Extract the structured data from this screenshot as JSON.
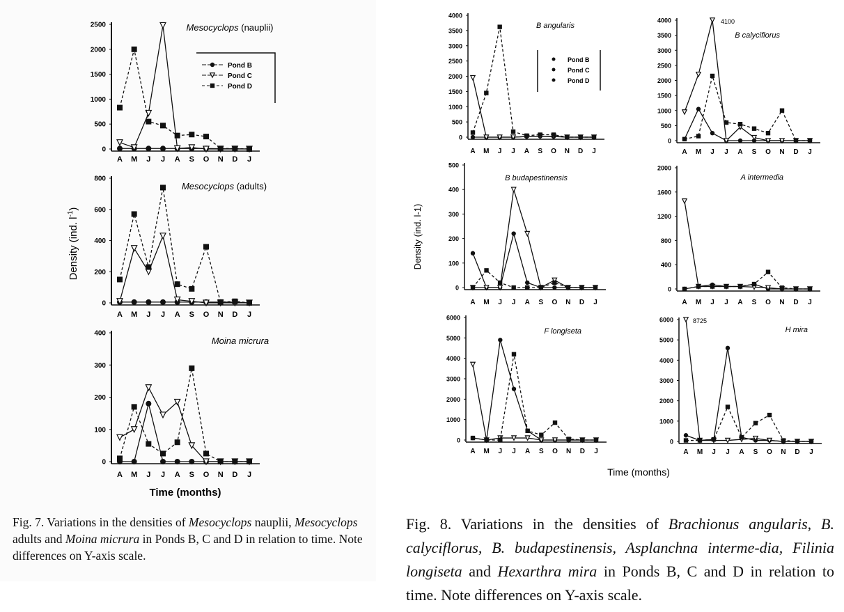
{
  "figure7": {
    "ylabel": "Density (ind. l",
    "ylabel_sup": "-1",
    "ylabel_end": ")",
    "xlabel": "Time (months)",
    "caption": [
      {
        "t": "Fig. 7. Variations in the densities of ",
        "i": false
      },
      {
        "t": "Mesocyclops",
        "i": true
      },
      {
        "t": " nauplii, ",
        "i": false
      },
      {
        "t": "Mesocyclops",
        "i": true
      },
      {
        "t": " adults and ",
        "i": false
      },
      {
        "t": "Moina micrura",
        "i": true
      },
      {
        "t": " in Ponds B, C and D in relation to time. Note differences on Y-axis scale.",
        "i": false
      }
    ]
  },
  "figure8": {
    "ylabel": "Density (ind. l-1)",
    "xlabel": "Time (months)",
    "caption": [
      {
        "t": "Fig. 8. Variations in the densities of ",
        "i": false
      },
      {
        "t": "Brachionus angularis, B. calyciflorus, B. budapestinensis, Asplanchna interme-dia, Filinia longiseta",
        "i": true
      },
      {
        "t": " and ",
        "i": false
      },
      {
        "t": "Hexarthra mira",
        "i": true
      },
      {
        "t": " in Ponds B, C and D in relation to time. Note differences on Y-axis scale.",
        "i": false
      }
    ]
  },
  "legend": [
    "Pond B",
    "Pond C",
    "Pond D"
  ],
  "chart_data": [
    {
      "type": "line",
      "figure": "Fig. 7",
      "title": "Mesocyclops (nauplii)",
      "title_italic": "Mesocyclops",
      "title_rest": " (nauplii)",
      "xlabel": "Time (months)",
      "ylabel": "Density (ind. l-1)",
      "categories": [
        "A",
        "M",
        "J",
        "J",
        "A",
        "S",
        "O",
        "N",
        "D",
        "J"
      ],
      "ylim": [
        0,
        2500
      ],
      "yticks": [
        0,
        500,
        1000,
        1500,
        2000,
        2500
      ],
      "legend": "top-right",
      "series": [
        {
          "name": "Pond B",
          "values": [
            10,
            10,
            10,
            10,
            10,
            10,
            10,
            5,
            5,
            0
          ]
        },
        {
          "name": "Pond C",
          "values": [
            130,
            30,
            720,
            2480,
            10,
            30,
            0,
            0,
            0,
            0
          ]
        },
        {
          "name": "Pond D",
          "values": [
            830,
            2000,
            550,
            470,
            270,
            290,
            250,
            10,
            10,
            0
          ]
        }
      ]
    },
    {
      "type": "line",
      "figure": "Fig. 7",
      "title": "Mesocyclops (adults)",
      "title_italic": "Mesocyclops",
      "title_rest": " (adults)",
      "categories": [
        "A",
        "M",
        "J",
        "J",
        "A",
        "S",
        "O",
        "N",
        "D",
        "J"
      ],
      "ylim": [
        0,
        800
      ],
      "yticks": [
        0,
        200,
        400,
        600,
        800
      ],
      "series": [
        {
          "name": "Pond B",
          "values": [
            5,
            5,
            5,
            5,
            5,
            5,
            5,
            5,
            5,
            0
          ]
        },
        {
          "name": "Pond C",
          "values": [
            10,
            350,
            200,
            430,
            20,
            10,
            0,
            0,
            0,
            0
          ]
        },
        {
          "name": "Pond D",
          "values": [
            150,
            570,
            230,
            740,
            120,
            90,
            360,
            5,
            10,
            0
          ]
        }
      ]
    },
    {
      "type": "line",
      "figure": "Fig. 7",
      "title": "Moina micrura",
      "title_italic": "Moina micrura",
      "title_rest": "",
      "categories": [
        "A",
        "M",
        "J",
        "J",
        "A",
        "S",
        "O",
        "N",
        "D",
        "J"
      ],
      "ylim": [
        0,
        400
      ],
      "yticks": [
        0,
        100,
        200,
        300,
        400
      ],
      "series": [
        {
          "name": "Pond B",
          "values": [
            0,
            0,
            180,
            0,
            0,
            0,
            0,
            0,
            0,
            0
          ]
        },
        {
          "name": "Pond C",
          "values": [
            75,
            100,
            230,
            145,
            185,
            50,
            0,
            0,
            0,
            0
          ]
        },
        {
          "name": "Pond D",
          "values": [
            10,
            170,
            55,
            25,
            60,
            290,
            25,
            0,
            0,
            0
          ]
        }
      ]
    },
    {
      "type": "line",
      "figure": "Fig. 8",
      "title": "B angularis",
      "title_italic": "B angularis",
      "title_rest": "",
      "legend": "top-right",
      "categories": [
        "A",
        "M",
        "J",
        "J",
        "A",
        "S",
        "O",
        "N",
        "D",
        "J"
      ],
      "ylim": [
        0,
        4000
      ],
      "yticks": [
        0,
        500,
        1000,
        1500,
        2000,
        2500,
        3000,
        3500,
        4000
      ],
      "series": [
        {
          "name": "Pond B",
          "values": [
            0,
            0,
            0,
            0,
            20,
            30,
            20,
            0,
            0,
            0
          ]
        },
        {
          "name": "Pond C",
          "values": [
            1950,
            0,
            0,
            0,
            20,
            30,
            30,
            0,
            0,
            0
          ]
        },
        {
          "name": "Pond D",
          "values": [
            150,
            1450,
            3620,
            180,
            50,
            80,
            80,
            0,
            0,
            0
          ]
        }
      ]
    },
    {
      "type": "line",
      "figure": "Fig. 8",
      "title": "B calyciflorus",
      "title_italic": "B calyciflorus",
      "title_rest": "",
      "annotation": "4100",
      "categories": [
        "A",
        "M",
        "J",
        "J",
        "A",
        "S",
        "O",
        "N",
        "D",
        "J"
      ],
      "ylim": [
        0,
        4000
      ],
      "yticks": [
        0,
        500,
        1000,
        1500,
        2000,
        2500,
        3000,
        3500,
        4000
      ],
      "series": [
        {
          "name": "Pond B",
          "values": [
            50,
            1050,
            250,
            0,
            0,
            0,
            0,
            0,
            0,
            0
          ]
        },
        {
          "name": "Pond C",
          "values": [
            950,
            2200,
            4100,
            0,
            450,
            100,
            0,
            0,
            0,
            0
          ]
        },
        {
          "name": "Pond D",
          "values": [
            50,
            150,
            2150,
            600,
            550,
            400,
            250,
            1000,
            0,
            0
          ]
        }
      ]
    },
    {
      "type": "line",
      "figure": "Fig. 8",
      "title": "B budapestinensis",
      "title_italic": "B budapestinensis",
      "title_rest": "",
      "categories": [
        "A",
        "M",
        "J",
        "J",
        "A",
        "S",
        "O",
        "N",
        "D",
        "J"
      ],
      "ylim": [
        0,
        500
      ],
      "yticks": [
        0,
        100,
        200,
        300,
        400,
        500
      ],
      "series": [
        {
          "name": "Pond B",
          "values": [
            140,
            0,
            0,
            220,
            20,
            0,
            0,
            0,
            0,
            0
          ]
        },
        {
          "name": "Pond C",
          "values": [
            0,
            0,
            0,
            400,
            220,
            0,
            30,
            0,
            0,
            0
          ]
        },
        {
          "name": "Pond D",
          "values": [
            0,
            70,
            20,
            0,
            0,
            0,
            20,
            0,
            0,
            0
          ]
        }
      ]
    },
    {
      "type": "line",
      "figure": "Fig. 8",
      "title": "A intermedia",
      "title_italic": "A intermedia",
      "title_rest": "",
      "categories": [
        "A",
        "M",
        "J",
        "J",
        "A",
        "S",
        "O",
        "N",
        "D",
        "J"
      ],
      "ylim": [
        0,
        2000
      ],
      "yticks": [
        0,
        400,
        800,
        1200,
        1600,
        2000
      ],
      "series": [
        {
          "name": "Pond B",
          "values": [
            0,
            40,
            70,
            40,
            40,
            80,
            0,
            0,
            0,
            0
          ]
        },
        {
          "name": "Pond C",
          "values": [
            1450,
            40,
            40,
            40,
            40,
            30,
            20,
            0,
            0,
            0
          ]
        },
        {
          "name": "Pond D",
          "values": [
            0,
            40,
            40,
            40,
            40,
            80,
            280,
            20,
            0,
            0
          ]
        }
      ]
    },
    {
      "type": "line",
      "figure": "Fig. 8",
      "title": "F longiseta",
      "title_italic": "F longiseta",
      "title_rest": "",
      "categories": [
        "A",
        "M",
        "J",
        "J",
        "A",
        "S",
        "O",
        "N",
        "D",
        "J"
      ],
      "ylim": [
        0,
        6000
      ],
      "yticks": [
        0,
        1000,
        2000,
        3000,
        4000,
        5000,
        6000
      ],
      "series": [
        {
          "name": "Pond B",
          "values": [
            100,
            0,
            4900,
            2500,
            450,
            0,
            0,
            0,
            0,
            0
          ]
        },
        {
          "name": "Pond C",
          "values": [
            3700,
            0,
            100,
            100,
            100,
            0,
            0,
            0,
            0,
            0
          ]
        },
        {
          "name": "Pond D",
          "values": [
            100,
            0,
            0,
            4200,
            450,
            250,
            850,
            50,
            0,
            0
          ]
        }
      ]
    },
    {
      "type": "line",
      "figure": "Fig. 8",
      "title": "H mira",
      "title_italic": "H mira",
      "title_rest": "",
      "annotation": "8725",
      "categories": [
        "A",
        "M",
        "J",
        "J",
        "A",
        "S",
        "O",
        "N",
        "D",
        "J"
      ],
      "ylim": [
        0,
        6000
      ],
      "yticks": [
        0,
        1000,
        2000,
        3000,
        4000,
        5000,
        6000
      ],
      "series": [
        {
          "name": "Pond B",
          "values": [
            300,
            50,
            100,
            4600,
            200,
            50,
            50,
            0,
            0,
            0
          ]
        },
        {
          "name": "Pond C",
          "values": [
            8725,
            50,
            50,
            50,
            100,
            150,
            50,
            0,
            0,
            0
          ]
        },
        {
          "name": "Pond D",
          "values": [
            50,
            50,
            100,
            1700,
            200,
            900,
            1300,
            50,
            0,
            0
          ]
        }
      ]
    }
  ]
}
